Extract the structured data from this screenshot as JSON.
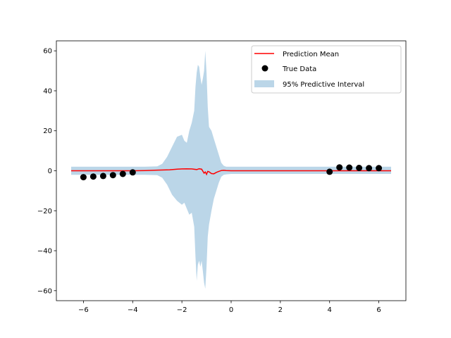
{
  "chart_data": {
    "type": "line",
    "title": "",
    "xlabel": "",
    "ylabel": "",
    "xlim": [
      -7.1,
      7.1
    ],
    "ylim": [
      -65,
      65
    ],
    "xticks": [
      -6,
      -4,
      -2,
      0,
      2,
      4,
      6
    ],
    "xtick_labels": [
      "−6",
      "−4",
      "−2",
      "0",
      "2",
      "4",
      "6"
    ],
    "yticks": [
      -60,
      -40,
      -20,
      0,
      20,
      40,
      60
    ],
    "ytick_labels": [
      "−60",
      "−40",
      "−20",
      "0",
      "20",
      "40",
      "60"
    ],
    "grid": false,
    "legend_position": "top-right",
    "series": [
      {
        "name": "Prediction Mean",
        "kind": "line",
        "color": "#ff0000",
        "x": [
          -6.5,
          -5.0,
          -4.0,
          -3.5,
          -3.0,
          -2.5,
          -2.2,
          -2.0,
          -1.8,
          -1.6,
          -1.4,
          -1.3,
          -1.2,
          -1.1,
          -1.05,
          -1.0,
          -0.95,
          -0.9,
          -0.8,
          -0.7,
          -0.6,
          -0.5,
          -0.4,
          -0.3,
          -0.2,
          0.0,
          0.5,
          1.0,
          2.0,
          3.0,
          4.0,
          5.0,
          6.5
        ],
        "y": [
          0.0,
          0.0,
          0.0,
          0.1,
          0.3,
          0.5,
          0.8,
          0.9,
          1.0,
          0.9,
          0.6,
          1.0,
          0.8,
          -1.2,
          -0.6,
          -1.8,
          -0.3,
          -0.5,
          -1.4,
          -1.5,
          -0.8,
          -0.3,
          0.1,
          0.2,
          0.1,
          0.0,
          0.0,
          0.0,
          0.0,
          0.0,
          0.0,
          0.0,
          0.0
        ]
      },
      {
        "name": "True Data",
        "kind": "scatter",
        "color": "#000000",
        "x": [
          -6.0,
          -5.6,
          -5.2,
          -4.8,
          -4.4,
          -4.0,
          4.0,
          4.4,
          4.8,
          5.2,
          5.6,
          6.0
        ],
        "y": [
          -3.2,
          -2.9,
          -2.6,
          -2.2,
          -1.6,
          -0.8,
          -0.5,
          1.7,
          1.6,
          1.4,
          1.3,
          1.3
        ]
      },
      {
        "name": "95% Predictive Interval",
        "kind": "band",
        "color": "#1f77b4",
        "opacity": 0.3,
        "x": [
          -6.5,
          -5.0,
          -4.0,
          -3.5,
          -3.0,
          -2.8,
          -2.6,
          -2.4,
          -2.2,
          -2.0,
          -1.9,
          -1.8,
          -1.7,
          -1.6,
          -1.5,
          -1.45,
          -1.4,
          -1.35,
          -1.3,
          -1.25,
          -1.2,
          -1.15,
          -1.1,
          -1.05,
          -1.0,
          -0.95,
          -0.9,
          -0.8,
          -0.7,
          -0.6,
          -0.5,
          -0.4,
          -0.3,
          -0.2,
          0.0,
          0.3,
          0.5,
          0.8,
          1.0,
          2.0,
          3.0,
          4.0,
          5.0,
          6.5
        ],
        "upper": [
          2.0,
          2.0,
          2.0,
          2.0,
          2.2,
          3.5,
          7.0,
          12.0,
          17.0,
          18.0,
          15.0,
          14.0,
          20.0,
          24.0,
          30.0,
          42.0,
          49.0,
          53.0,
          52.0,
          47.0,
          43.0,
          46.0,
          50.0,
          60.0,
          49.0,
          32.0,
          22.0,
          20.0,
          16.0,
          12.0,
          8.0,
          4.0,
          2.5,
          2.0,
          2.0,
          2.0,
          2.0,
          2.0,
          2.0,
          2.0,
          2.0,
          2.0,
          2.0,
          2.0
        ],
        "lower": [
          -2.0,
          -2.0,
          -2.0,
          -2.0,
          -2.2,
          -3.5,
          -7.0,
          -12.0,
          -15.0,
          -17.0,
          -16.0,
          -19.0,
          -22.0,
          -21.0,
          -28.0,
          -43.0,
          -55.0,
          -47.0,
          -45.0,
          -48.0,
          -45.0,
          -50.0,
          -56.0,
          -59.0,
          -48.0,
          -33.0,
          -27.0,
          -20.0,
          -14.0,
          -10.0,
          -6.0,
          -3.0,
          -2.0,
          -1.8,
          -1.6,
          -1.6,
          -1.6,
          -1.6,
          -1.6,
          -1.6,
          -1.6,
          -1.6,
          -1.6,
          -1.6
        ]
      }
    ],
    "legend": [
      {
        "label": "Prediction Mean",
        "kind": "line",
        "color": "#ff0000"
      },
      {
        "label": "True Data",
        "kind": "scatter",
        "color": "#000000"
      },
      {
        "label": "95% Predictive Interval",
        "kind": "band",
        "color": "#1f77b4"
      }
    ]
  }
}
